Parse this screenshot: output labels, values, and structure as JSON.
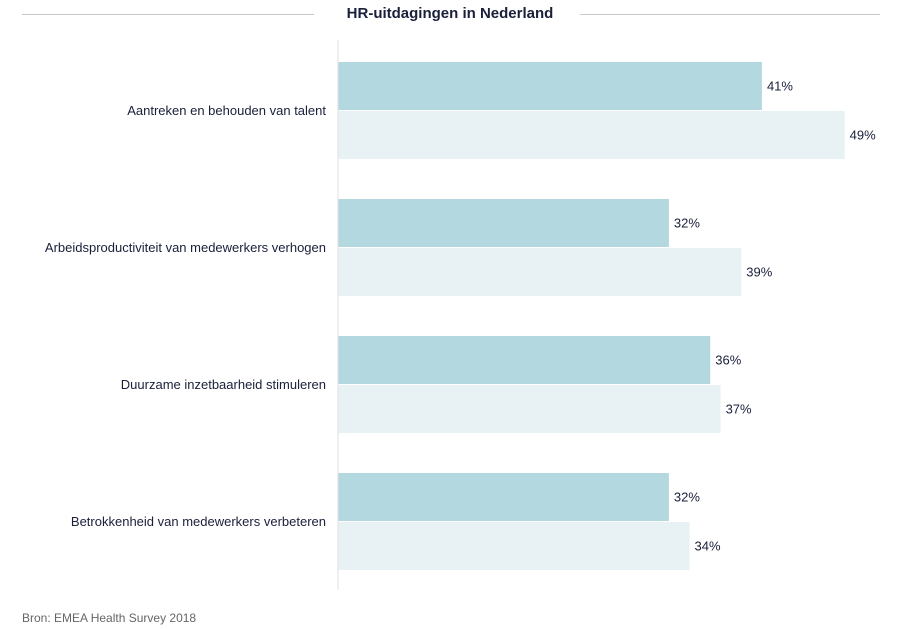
{
  "chart_data": {
    "type": "bar",
    "orientation": "horizontal",
    "title": "HR-uitdagingen in Nederland",
    "categories": [
      "Aantreken en behouden van talent",
      "Arbeidsproductiviteit van medewerkers verhogen",
      "Duurzame inzetbaarheid stimuleren",
      "Betrokkenheid van medewerkers verbeteren"
    ],
    "series": [
      {
        "values": [
          41,
          32,
          36,
          32
        ],
        "labels": [
          "41%",
          "32%",
          "36%",
          "32%"
        ],
        "color": "#b3d8df"
      },
      {
        "values": [
          49,
          39,
          37,
          34
        ],
        "labels": [
          "49%",
          "39%",
          "37%",
          "34%"
        ],
        "color": "#e8f1f3"
      }
    ],
    "unit": "%",
    "grid": false,
    "legend": "none"
  },
  "source": "Bron: EMEA Health Survey 2018"
}
